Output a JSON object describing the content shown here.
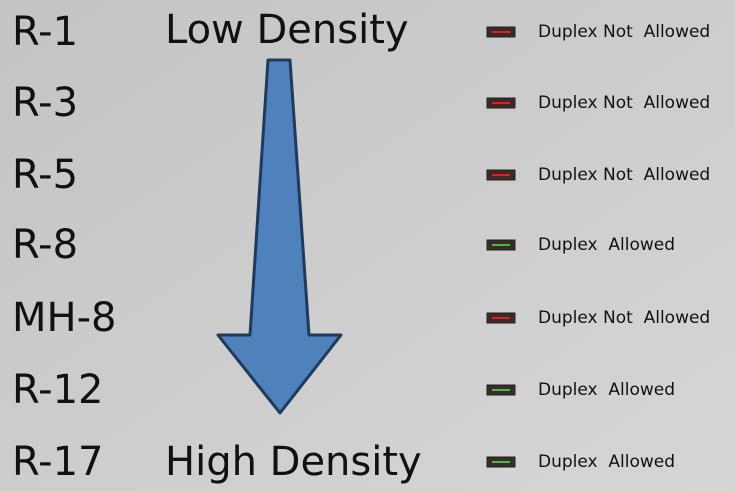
{
  "low_label": "Low Density",
  "high_label": "High Density",
  "zones": [
    {
      "label": "R-1",
      "duplex": "Duplex Not  Allowed",
      "indicator_color": "#e0201c"
    },
    {
      "label": "R-3",
      "duplex": "Duplex Not  Allowed",
      "indicator_color": "#e0201c"
    },
    {
      "label": "R-5",
      "duplex": "Duplex Not  Allowed",
      "indicator_color": "#e0201c"
    },
    {
      "label": "R-8",
      "duplex": "Duplex  Allowed",
      "indicator_color": "#3fbf3f"
    },
    {
      "label": "MH-8",
      "duplex": "Duplex Not  Allowed",
      "indicator_color": "#e0201c"
    },
    {
      "label": "R-12",
      "duplex": "Duplex  Allowed",
      "indicator_color": "#3fbf3f"
    },
    {
      "label": "R-17",
      "duplex": "Duplex  Allowed",
      "indicator_color": "#3fbf3f"
    }
  ]
}
